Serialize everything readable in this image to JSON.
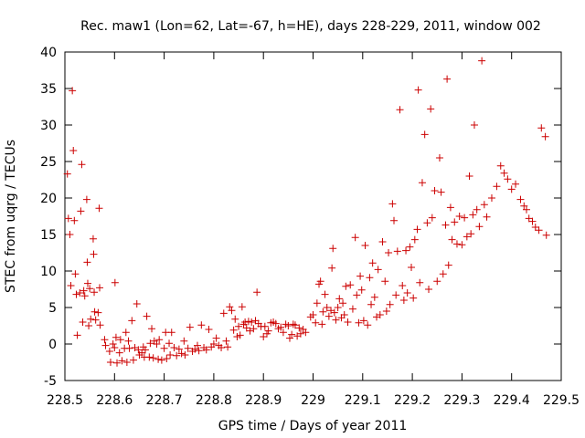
{
  "chart_data": {
    "type": "scatter",
    "title": "Rec. maw1 (Lon=62, Lat=-67, h=HE), days 228-229, 2011, window 002",
    "xlabel": "GPS time / Days of year 2011",
    "ylabel": "STEC from uqrg / TECUs",
    "xlim": [
      228.5,
      229.5
    ],
    "ylim": [
      -5,
      40
    ],
    "xticks": [
      228.5,
      228.6,
      228.7,
      228.8,
      228.9,
      229.0,
      229.1,
      229.2,
      229.3,
      229.4,
      229.5
    ],
    "xtick_labels": [
      "228.5",
      "228.6",
      "228.7",
      "228.8",
      "228.9",
      "229",
      "229.1",
      "229.2",
      "229.3",
      "229.4",
      "229.5"
    ],
    "yticks": [
      -5,
      0,
      5,
      10,
      15,
      20,
      25,
      30,
      35,
      40
    ],
    "ytick_labels": [
      "-5",
      "0",
      "5",
      "10",
      "15",
      "20",
      "25",
      "30",
      "35",
      "40"
    ],
    "grid": false,
    "legend": "none",
    "marker": "plus",
    "series_color": "#cc0000",
    "series": [
      {
        "points": [
          [
            228.505,
            23.3
          ],
          [
            228.507,
            17.2
          ],
          [
            228.51,
            15.0
          ],
          [
            228.512,
            8.0
          ],
          [
            228.515,
            34.7
          ],
          [
            228.517,
            26.5
          ],
          [
            228.519,
            16.9
          ],
          [
            228.521,
            9.6
          ],
          [
            228.523,
            6.8
          ],
          [
            228.525,
            1.2
          ],
          [
            228.53,
            7.0
          ],
          [
            228.532,
            18.2
          ],
          [
            228.534,
            24.6
          ],
          [
            228.536,
            3.0
          ],
          [
            228.538,
            7.3
          ],
          [
            228.54,
            6.6
          ],
          [
            228.544,
            19.8
          ],
          [
            228.545,
            11.2
          ],
          [
            228.546,
            8.3
          ],
          [
            228.548,
            2.5
          ],
          [
            228.55,
            7.6
          ],
          [
            228.552,
            3.4
          ],
          [
            228.557,
            14.4
          ],
          [
            228.558,
            12.3
          ],
          [
            228.559,
            7.1
          ],
          [
            228.56,
            4.4
          ],
          [
            228.562,
            3.3
          ],
          [
            228.567,
            4.3
          ],
          [
            228.569,
            18.6
          ],
          [
            228.57,
            7.7
          ],
          [
            228.571,
            2.6
          ],
          [
            228.58,
            0.6
          ],
          [
            228.582,
            -0.2
          ],
          [
            228.59,
            -1.0
          ],
          [
            228.592,
            -2.5
          ],
          [
            228.597,
            0.0
          ],
          [
            228.6,
            -0.5
          ],
          [
            228.601,
            8.4
          ],
          [
            228.603,
            0.9
          ],
          [
            228.605,
            -2.6
          ],
          [
            228.61,
            -1.2
          ],
          [
            228.612,
            0.6
          ],
          [
            228.615,
            -2.3
          ],
          [
            228.62,
            -0.6
          ],
          [
            228.623,
            1.6
          ],
          [
            228.625,
            -2.5
          ],
          [
            228.628,
            0.4
          ],
          [
            228.63,
            -0.6
          ],
          [
            228.635,
            3.2
          ],
          [
            228.638,
            -2.2
          ],
          [
            228.641,
            -0.5
          ],
          [
            228.645,
            5.5
          ],
          [
            228.648,
            -0.8
          ],
          [
            228.65,
            -1.5
          ],
          [
            228.655,
            -1.2
          ],
          [
            228.658,
            -0.4
          ],
          [
            228.66,
            -1.8
          ],
          [
            228.662,
            -0.8
          ],
          [
            228.665,
            3.8
          ],
          [
            228.67,
            -1.8
          ],
          [
            228.672,
            0.1
          ],
          [
            228.675,
            2.1
          ],
          [
            228.678,
            -1.9
          ],
          [
            228.68,
            0.4
          ],
          [
            228.685,
            0.0
          ],
          [
            228.688,
            -2.1
          ],
          [
            228.69,
            0.6
          ],
          [
            228.695,
            -2.2
          ],
          [
            228.7,
            -0.6
          ],
          [
            228.703,
            1.6
          ],
          [
            228.705,
            -2.0
          ],
          [
            228.71,
            0.1
          ],
          [
            228.712,
            -1.5
          ],
          [
            228.715,
            1.6
          ],
          [
            228.72,
            -0.5
          ],
          [
            228.725,
            -1.6
          ],
          [
            228.73,
            -0.7
          ],
          [
            228.735,
            -1.3
          ],
          [
            228.74,
            0.4
          ],
          [
            228.742,
            -1.5
          ],
          [
            228.748,
            -0.6
          ],
          [
            228.752,
            2.3
          ],
          [
            228.757,
            -1.0
          ],
          [
            228.762,
            -0.7
          ],
          [
            228.767,
            -0.2
          ],
          [
            228.77,
            -0.9
          ],
          [
            228.775,
            2.6
          ],
          [
            228.78,
            -0.5
          ],
          [
            228.785,
            -0.8
          ],
          [
            228.79,
            2.0
          ],
          [
            228.795,
            -0.4
          ],
          [
            228.8,
            0.0
          ],
          [
            228.805,
            0.8
          ],
          [
            228.81,
            -0.2
          ],
          [
            228.815,
            -0.5
          ],
          [
            228.82,
            4.2
          ],
          [
            228.825,
            0.4
          ],
          [
            228.828,
            -0.4
          ],
          [
            228.832,
            5.1
          ],
          [
            228.836,
            4.6
          ],
          [
            228.84,
            1.9
          ],
          [
            228.843,
            3.4
          ],
          [
            228.847,
            1.0
          ],
          [
            228.85,
            2.4
          ],
          [
            228.853,
            1.2
          ],
          [
            228.857,
            5.1
          ],
          [
            228.86,
            2.7
          ],
          [
            228.863,
            3.0
          ],
          [
            228.866,
            2.2
          ],
          [
            228.87,
            3.1
          ],
          [
            228.873,
            1.8
          ],
          [
            228.876,
            3.0
          ],
          [
            228.88,
            2.1
          ],
          [
            228.884,
            3.2
          ],
          [
            228.887,
            7.1
          ],
          [
            228.89,
            2.8
          ],
          [
            228.895,
            2.4
          ],
          [
            228.9,
            1.0
          ],
          [
            228.903,
            2.4
          ],
          [
            228.907,
            1.4
          ],
          [
            228.91,
            1.8
          ],
          [
            228.915,
            2.9
          ],
          [
            228.92,
            3.0
          ],
          [
            228.925,
            2.8
          ],
          [
            228.93,
            2.1
          ],
          [
            228.935,
            2.3
          ],
          [
            228.94,
            1.6
          ],
          [
            228.945,
            2.7
          ],
          [
            228.95,
            2.5
          ],
          [
            228.953,
            0.8
          ],
          [
            228.957,
            1.3
          ],
          [
            228.96,
            2.7
          ],
          [
            228.964,
            2.6
          ],
          [
            228.968,
            1.1
          ],
          [
            228.972,
            2.2
          ],
          [
            228.975,
            1.4
          ],
          [
            228.98,
            2.0
          ],
          [
            228.985,
            1.6
          ],
          [
            228.995,
            3.7
          ],
          [
            229.0,
            4.0
          ],
          [
            229.005,
            2.9
          ],
          [
            229.008,
            5.6
          ],
          [
            229.012,
            8.2
          ],
          [
            229.015,
            8.6
          ],
          [
            229.018,
            2.7
          ],
          [
            229.02,
            4.4
          ],
          [
            229.024,
            6.8
          ],
          [
            229.028,
            5.0
          ],
          [
            229.032,
            3.8
          ],
          [
            229.036,
            4.6
          ],
          [
            229.038,
            10.4
          ],
          [
            229.04,
            13.1
          ],
          [
            229.043,
            4.3
          ],
          [
            229.046,
            3.3
          ],
          [
            229.05,
            5.0
          ],
          [
            229.053,
            6.2
          ],
          [
            229.057,
            3.6
          ],
          [
            229.06,
            5.6
          ],
          [
            229.063,
            4.0
          ],
          [
            229.066,
            7.9
          ],
          [
            229.07,
            3.0
          ],
          [
            229.075,
            8.1
          ],
          [
            229.08,
            4.8
          ],
          [
            229.085,
            14.6
          ],
          [
            229.088,
            6.7
          ],
          [
            229.092,
            2.9
          ],
          [
            229.095,
            9.3
          ],
          [
            229.098,
            7.4
          ],
          [
            229.102,
            3.2
          ],
          [
            229.105,
            13.5
          ],
          [
            229.11,
            2.6
          ],
          [
            229.114,
            9.1
          ],
          [
            229.117,
            5.4
          ],
          [
            229.12,
            11.1
          ],
          [
            229.124,
            6.4
          ],
          [
            229.128,
            3.7
          ],
          [
            229.131,
            10.2
          ],
          [
            229.135,
            4.0
          ],
          [
            229.14,
            14.0
          ],
          [
            229.145,
            8.6
          ],
          [
            229.148,
            4.5
          ],
          [
            229.152,
            12.5
          ],
          [
            229.155,
            5.4
          ],
          [
            229.16,
            19.2
          ],
          [
            229.163,
            16.9
          ],
          [
            229.167,
            6.7
          ],
          [
            229.17,
            12.7
          ],
          [
            229.175,
            32.1
          ],
          [
            229.18,
            8.0
          ],
          [
            229.183,
            6.0
          ],
          [
            229.187,
            12.8
          ],
          [
            229.19,
            7.0
          ],
          [
            229.195,
            13.3
          ],
          [
            229.198,
            10.5
          ],
          [
            229.202,
            6.3
          ],
          [
            229.205,
            14.3
          ],
          [
            229.21,
            15.7
          ],
          [
            229.212,
            34.8
          ],
          [
            229.215,
            8.4
          ],
          [
            229.22,
            22.1
          ],
          [
            229.225,
            28.7
          ],
          [
            229.23,
            16.6
          ],
          [
            229.233,
            7.5
          ],
          [
            229.237,
            32.2
          ],
          [
            229.24,
            17.3
          ],
          [
            229.245,
            21.0
          ],
          [
            229.25,
            8.6
          ],
          [
            229.255,
            25.5
          ],
          [
            229.258,
            20.8
          ],
          [
            229.262,
            9.6
          ],
          [
            229.267,
            16.3
          ],
          [
            229.27,
            36.3
          ],
          [
            229.273,
            10.8
          ],
          [
            229.277,
            18.7
          ],
          [
            229.28,
            14.3
          ],
          [
            229.285,
            16.7
          ],
          [
            229.29,
            13.7
          ],
          [
            229.295,
            17.5
          ],
          [
            229.3,
            13.6
          ],
          [
            229.305,
            17.3
          ],
          [
            229.31,
            14.7
          ],
          [
            229.315,
            23.0
          ],
          [
            229.318,
            15.1
          ],
          [
            229.322,
            17.7
          ],
          [
            229.325,
            30.0
          ],
          [
            229.33,
            18.4
          ],
          [
            229.335,
            16.1
          ],
          [
            229.34,
            38.8
          ],
          [
            229.345,
            19.1
          ],
          [
            229.35,
            17.4
          ],
          [
            229.36,
            20.0
          ],
          [
            229.37,
            21.6
          ],
          [
            229.378,
            24.4
          ],
          [
            229.385,
            23.4
          ],
          [
            229.392,
            22.6
          ],
          [
            229.4,
            21.2
          ],
          [
            229.408,
            21.9
          ],
          [
            229.418,
            19.8
          ],
          [
            229.425,
            18.9
          ],
          [
            229.43,
            18.4
          ],
          [
            229.435,
            17.2
          ],
          [
            229.442,
            16.8
          ],
          [
            229.448,
            16.0
          ],
          [
            229.455,
            15.6
          ],
          [
            229.46,
            29.6
          ],
          [
            229.468,
            28.4
          ],
          [
            229.47,
            14.9
          ]
        ]
      }
    ]
  }
}
